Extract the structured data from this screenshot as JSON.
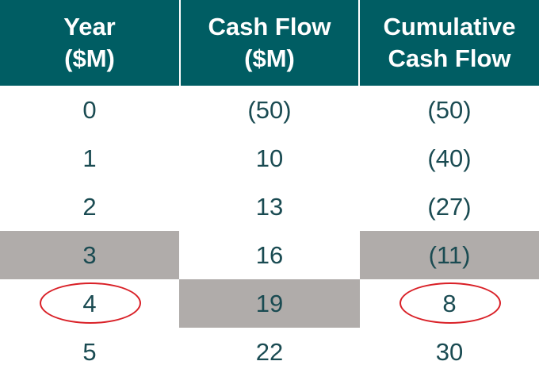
{
  "headers": [
    [
      "Year",
      "($M)"
    ],
    [
      "Cash Flow",
      "($M)"
    ],
    [
      "Cumulative",
      "Cash Flow"
    ]
  ],
  "rows": [
    {
      "year": "0",
      "cash_flow": "(50)",
      "cumulative": "(50)"
    },
    {
      "year": "1",
      "cash_flow": "10",
      "cumulative": "(40)"
    },
    {
      "year": "2",
      "cash_flow": "13",
      "cumulative": "(27)"
    },
    {
      "year": "3",
      "cash_flow": "16",
      "cumulative": "(11)"
    },
    {
      "year": "4",
      "cash_flow": "19",
      "cumulative": "8"
    },
    {
      "year": "5",
      "cash_flow": "22",
      "cumulative": "30"
    }
  ],
  "highlight_color": "#b0acaa",
  "header_color": "#005d63",
  "circle_color": "#d92027"
}
